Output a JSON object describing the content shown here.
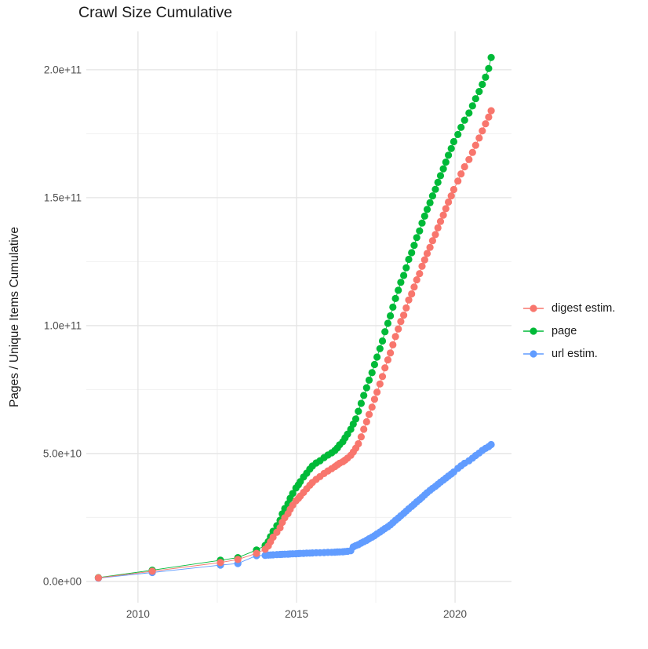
{
  "title": "Crawl Size Cumulative",
  "chart_data": {
    "type": "line",
    "title": "Crawl Size Cumulative",
    "xlabel": "",
    "ylabel": "Pages / Unique Items Cumulative",
    "grid": true,
    "legend_position": "right",
    "value_unit_note": "y values stored in billions (1e9)",
    "xlim": [
      2008.37,
      2021.78
    ],
    "ylim_e9": [
      -8.3,
      215
    ],
    "x_ticks": [
      {
        "label": "2010",
        "value": 2010
      },
      {
        "label": "2015",
        "value": 2015
      },
      {
        "label": "2020",
        "value": 2020
      }
    ],
    "x_minor_ticks": [
      2012.5,
      2017.5
    ],
    "y_ticks": [
      {
        "label": "0.0e+00",
        "value": 0
      },
      {
        "label": "5.0e+10",
        "value": 50
      },
      {
        "label": "1.0e+11",
        "value": 100
      },
      {
        "label": "1.5e+11",
        "value": 150
      },
      {
        "label": "2.0e+11",
        "value": 200
      }
    ],
    "y_minor_ticks": [
      25,
      75,
      125,
      175
    ],
    "series": [
      {
        "name": "digest estim.",
        "color": "#F8766D",
        "points": [
          [
            2008.75,
            1.4
          ],
          [
            2010.45,
            4.0
          ],
          [
            2012.6,
            7.4
          ],
          [
            2013.15,
            8.6
          ],
          [
            2013.74,
            11.0
          ],
          [
            2014.01,
            12.6
          ],
          [
            2014.11,
            13.9
          ],
          [
            2014.18,
            15.5
          ],
          [
            2014.26,
            17.3
          ],
          [
            2014.38,
            19.2
          ],
          [
            2014.48,
            21.0
          ],
          [
            2014.55,
            23.1
          ],
          [
            2014.63,
            24.9
          ],
          [
            2014.73,
            26.5
          ],
          [
            2014.8,
            28.2
          ],
          [
            2014.88,
            29.8
          ],
          [
            2014.98,
            31.5
          ],
          [
            2015.06,
            32.5
          ],
          [
            2015.12,
            33.4
          ],
          [
            2015.22,
            34.8
          ],
          [
            2015.32,
            36.2
          ],
          [
            2015.42,
            37.6
          ],
          [
            2015.5,
            38.7
          ],
          [
            2015.62,
            39.9
          ],
          [
            2015.74,
            41.0
          ],
          [
            2015.87,
            42.2
          ],
          [
            2015.99,
            43.2
          ],
          [
            2016.11,
            44.1
          ],
          [
            2016.21,
            44.9
          ],
          [
            2016.29,
            45.6
          ],
          [
            2016.36,
            46.2
          ],
          [
            2016.46,
            46.8
          ],
          [
            2016.53,
            47.4
          ],
          [
            2016.61,
            48.2
          ],
          [
            2016.71,
            49.3
          ],
          [
            2016.79,
            50.6
          ],
          [
            2016.87,
            52.1
          ],
          [
            2016.95,
            53.8
          ],
          [
            2017.04,
            56.5
          ],
          [
            2017.12,
            59.5
          ],
          [
            2017.21,
            62.4
          ],
          [
            2017.29,
            65.3
          ],
          [
            2017.38,
            68.1
          ],
          [
            2017.46,
            71.2
          ],
          [
            2017.54,
            74.0
          ],
          [
            2017.63,
            77.2
          ],
          [
            2017.71,
            80.1
          ],
          [
            2017.79,
            83.5
          ],
          [
            2017.88,
            86.6
          ],
          [
            2017.96,
            89.3
          ],
          [
            2018.04,
            92.5
          ],
          [
            2018.12,
            95.7
          ],
          [
            2018.21,
            98.7
          ],
          [
            2018.29,
            101.6
          ],
          [
            2018.38,
            104.1
          ],
          [
            2018.46,
            106.9
          ],
          [
            2018.54,
            110.0
          ],
          [
            2018.63,
            112.4
          ],
          [
            2018.71,
            115.1
          ],
          [
            2018.79,
            117.9
          ],
          [
            2018.88,
            120.3
          ],
          [
            2018.96,
            123.2
          ],
          [
            2019.04,
            125.7
          ],
          [
            2019.12,
            128.2
          ],
          [
            2019.21,
            130.6
          ],
          [
            2019.29,
            133.2
          ],
          [
            2019.38,
            135.6
          ],
          [
            2019.46,
            138.2
          ],
          [
            2019.54,
            140.7
          ],
          [
            2019.63,
            143.2
          ],
          [
            2019.71,
            145.7
          ],
          [
            2019.79,
            148.3
          ],
          [
            2019.88,
            150.7
          ],
          [
            2019.96,
            153.2
          ],
          [
            2020.09,
            156.5
          ],
          [
            2020.19,
            159.3
          ],
          [
            2020.3,
            162.1
          ],
          [
            2020.44,
            164.9
          ],
          [
            2020.55,
            167.7
          ],
          [
            2020.65,
            170.5
          ],
          [
            2020.76,
            173.3
          ],
          [
            2020.86,
            176.1
          ],
          [
            2020.96,
            178.9
          ],
          [
            2021.06,
            181.5
          ],
          [
            2021.14,
            184.0
          ]
        ]
      },
      {
        "name": "page",
        "color": "#00BA38",
        "points": [
          [
            2008.75,
            1.5
          ],
          [
            2010.45,
            4.4
          ],
          [
            2012.6,
            8.3
          ],
          [
            2013.15,
            9.3
          ],
          [
            2013.74,
            12.3
          ],
          [
            2014.01,
            14.1
          ],
          [
            2014.11,
            15.6
          ],
          [
            2014.18,
            17.5
          ],
          [
            2014.26,
            19.6
          ],
          [
            2014.38,
            21.8
          ],
          [
            2014.48,
            23.9
          ],
          [
            2014.55,
            26.4
          ],
          [
            2014.63,
            28.5
          ],
          [
            2014.73,
            30.4
          ],
          [
            2014.8,
            32.5
          ],
          [
            2014.88,
            34.4
          ],
          [
            2014.98,
            36.5
          ],
          [
            2015.06,
            37.8
          ],
          [
            2015.12,
            39.0
          ],
          [
            2015.22,
            40.8
          ],
          [
            2015.32,
            42.3
          ],
          [
            2015.42,
            43.9
          ],
          [
            2015.5,
            45.1
          ],
          [
            2015.62,
            46.3
          ],
          [
            2015.74,
            47.2
          ],
          [
            2015.87,
            48.4
          ],
          [
            2015.99,
            49.4
          ],
          [
            2016.11,
            50.3
          ],
          [
            2016.21,
            51.2
          ],
          [
            2016.29,
            52.2
          ],
          [
            2016.36,
            53.4
          ],
          [
            2016.46,
            54.6
          ],
          [
            2016.53,
            56.1
          ],
          [
            2016.61,
            57.6
          ],
          [
            2016.71,
            59.5
          ],
          [
            2016.79,
            61.5
          ],
          [
            2016.87,
            63.5
          ],
          [
            2016.95,
            66.5
          ],
          [
            2017.04,
            69.6
          ],
          [
            2017.12,
            72.7
          ],
          [
            2017.21,
            75.7
          ],
          [
            2017.29,
            78.7
          ],
          [
            2017.38,
            81.6
          ],
          [
            2017.46,
            84.8
          ],
          [
            2017.54,
            87.7
          ],
          [
            2017.63,
            91.0
          ],
          [
            2017.71,
            94.0
          ],
          [
            2017.79,
            97.6
          ],
          [
            2017.88,
            100.9
          ],
          [
            2017.96,
            103.8
          ],
          [
            2018.04,
            107.2
          ],
          [
            2018.12,
            110.6
          ],
          [
            2018.21,
            113.8
          ],
          [
            2018.29,
            116.9
          ],
          [
            2018.38,
            119.6
          ],
          [
            2018.46,
            122.6
          ],
          [
            2018.54,
            125.9
          ],
          [
            2018.63,
            128.5
          ],
          [
            2018.71,
            131.4
          ],
          [
            2018.79,
            134.4
          ],
          [
            2018.88,
            137.0
          ],
          [
            2018.96,
            140.1
          ],
          [
            2019.04,
            142.8
          ],
          [
            2019.12,
            145.4
          ],
          [
            2019.21,
            148.0
          ],
          [
            2019.29,
            150.7
          ],
          [
            2019.38,
            153.3
          ],
          [
            2019.46,
            156.0
          ],
          [
            2019.54,
            158.6
          ],
          [
            2019.63,
            161.3
          ],
          [
            2019.71,
            163.9
          ],
          [
            2019.79,
            166.6
          ],
          [
            2019.88,
            169.2
          ],
          [
            2019.96,
            171.9
          ],
          [
            2020.09,
            174.7
          ],
          [
            2020.19,
            177.5
          ],
          [
            2020.3,
            180.3
          ],
          [
            2020.44,
            183.1
          ],
          [
            2020.55,
            185.9
          ],
          [
            2020.65,
            188.7
          ],
          [
            2020.76,
            191.5
          ],
          [
            2020.86,
            194.3
          ],
          [
            2020.96,
            197.1
          ],
          [
            2021.06,
            200.5
          ],
          [
            2021.14,
            204.8
          ]
        ]
      },
      {
        "name": "url estim.",
        "color": "#619CFF",
        "points": [
          [
            2008.75,
            1.3
          ],
          [
            2010.45,
            3.5
          ],
          [
            2012.6,
            6.4
          ],
          [
            2013.15,
            7.0
          ],
          [
            2013.74,
            10.1
          ],
          [
            2014.01,
            10.2
          ],
          [
            2014.11,
            10.3
          ],
          [
            2014.18,
            10.35
          ],
          [
            2014.26,
            10.4
          ],
          [
            2014.38,
            10.5
          ],
          [
            2014.48,
            10.55
          ],
          [
            2014.55,
            10.6
          ],
          [
            2014.63,
            10.65
          ],
          [
            2014.73,
            10.7
          ],
          [
            2014.8,
            10.75
          ],
          [
            2014.88,
            10.8
          ],
          [
            2014.98,
            10.85
          ],
          [
            2015.06,
            10.9
          ],
          [
            2015.12,
            10.95
          ],
          [
            2015.22,
            11.0
          ],
          [
            2015.32,
            11.05
          ],
          [
            2015.42,
            11.1
          ],
          [
            2015.5,
            11.15
          ],
          [
            2015.62,
            11.2
          ],
          [
            2015.74,
            11.25
          ],
          [
            2015.87,
            11.3
          ],
          [
            2015.99,
            11.35
          ],
          [
            2016.11,
            11.4
          ],
          [
            2016.21,
            11.45
          ],
          [
            2016.29,
            11.5
          ],
          [
            2016.36,
            11.55
          ],
          [
            2016.46,
            11.6
          ],
          [
            2016.53,
            11.7
          ],
          [
            2016.61,
            11.8
          ],
          [
            2016.71,
            12.0
          ],
          [
            2016.79,
            13.5
          ],
          [
            2016.87,
            14.0
          ],
          [
            2016.95,
            14.4
          ],
          [
            2017.04,
            15.0
          ],
          [
            2017.12,
            15.5
          ],
          [
            2017.21,
            16.1
          ],
          [
            2017.29,
            16.7
          ],
          [
            2017.38,
            17.3
          ],
          [
            2017.46,
            17.9
          ],
          [
            2017.54,
            18.6
          ],
          [
            2017.63,
            19.3
          ],
          [
            2017.71,
            20.0
          ],
          [
            2017.79,
            20.7
          ],
          [
            2017.88,
            21.4
          ],
          [
            2017.96,
            22.1
          ],
          [
            2018.04,
            23.0
          ],
          [
            2018.12,
            23.9
          ],
          [
            2018.21,
            24.8
          ],
          [
            2018.29,
            25.7
          ],
          [
            2018.38,
            26.6
          ],
          [
            2018.46,
            27.5
          ],
          [
            2018.54,
            28.4
          ],
          [
            2018.63,
            29.3
          ],
          [
            2018.71,
            30.2
          ],
          [
            2018.79,
            31.1
          ],
          [
            2018.88,
            32.0
          ],
          [
            2018.96,
            32.9
          ],
          [
            2019.04,
            33.8
          ],
          [
            2019.12,
            34.7
          ],
          [
            2019.21,
            35.6
          ],
          [
            2019.29,
            36.4
          ],
          [
            2019.38,
            37.2
          ],
          [
            2019.46,
            38.0
          ],
          [
            2019.54,
            38.8
          ],
          [
            2019.63,
            39.6
          ],
          [
            2019.71,
            40.4
          ],
          [
            2019.79,
            41.2
          ],
          [
            2019.88,
            42.0
          ],
          [
            2019.96,
            42.8
          ],
          [
            2020.09,
            44.2
          ],
          [
            2020.19,
            45.2
          ],
          [
            2020.3,
            46.2
          ],
          [
            2020.44,
            47.2
          ],
          [
            2020.55,
            48.2
          ],
          [
            2020.65,
            49.2
          ],
          [
            2020.76,
            50.2
          ],
          [
            2020.86,
            51.2
          ],
          [
            2020.96,
            52.0
          ],
          [
            2021.06,
            52.7
          ],
          [
            2021.14,
            53.5
          ]
        ]
      }
    ],
    "style": {
      "grid_major_color": "#E4E4E4",
      "grid_minor_color": "#F0F0F0",
      "tick_label_color": "#4D4D4D",
      "text_color": "#1A1A1A",
      "background": "#FFFFFF"
    }
  }
}
